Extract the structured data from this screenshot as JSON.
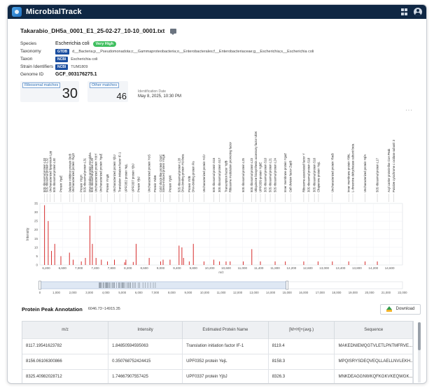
{
  "app": {
    "title": "MicrobialTrack"
  },
  "sample": {
    "filename": "Takarabio_DH5a_0001_E1_25-02-27_10-10_0001.txt",
    "species_label": "Species",
    "species": "Escherichia coli",
    "confidence": "Very High",
    "taxonomy_label": "Taxonomy",
    "taxonomy_tag": "GTDB",
    "taxonomy": "d__Bacteria;p__Pseudomonadota;c__Gammaproteobacteria;o__Enterobacterales;f__Enterobacteriaceae;g__Escherichia;s__Escherichia coli",
    "taxon_label": "Taxon",
    "taxon_tag": "NCBI",
    "taxon": "Escherichia coli",
    "strain_label": "Strain Identifiers",
    "strain_tag": "NCBI",
    "strain": "TUM1809",
    "genome_label": "Genome ID",
    "genome": "GCF_003176275.1"
  },
  "stats": {
    "ribosomal_label": "Ribosomal matches",
    "ribosomal_value": "30",
    "other_label": "Other matches",
    "other_value": "46",
    "id_date_label": "Identification Date",
    "id_date": "May 8, 2025, 10:30 PM"
  },
  "chart_menu": "···",
  "chart_data": {
    "type": "bar",
    "ylabel": "Intensity",
    "xlabel": "m/z",
    "xlim": [
      6046.73,
      14915.35
    ],
    "ylim": [
      0,
      35
    ],
    "yticks": [
      0,
      5,
      10,
      15,
      20,
      25,
      30,
      35
    ],
    "xticks": [
      6200,
      6600,
      7000,
      7400,
      7800,
      8200,
      8600,
      9000,
      9400,
      9800,
      10200,
      10600,
      11000,
      11400,
      11800,
      12200,
      12600,
      13000,
      13400,
      13800,
      14200,
      14600
    ],
    "overview_ticks": [
      0,
      1000,
      2000,
      3000,
      4000,
      5000,
      6000,
      7000,
      8000,
      9000,
      10000,
      11000,
      12000,
      13000,
      14000,
      15000,
      16000,
      17000,
      18000,
      19000,
      20000,
      21000,
      22000
    ],
    "overview_window": [
      0,
      15000
    ],
    "peaks": [
      {
        "mz": 6160,
        "y": 34
      },
      {
        "mz": 6250,
        "y": 25
      },
      {
        "mz": 6330,
        "y": 8
      },
      {
        "mz": 6410,
        "y": 12
      },
      {
        "mz": 6560,
        "y": 5
      },
      {
        "mz": 6770,
        "y": 7
      },
      {
        "mz": 6860,
        "y": 3
      },
      {
        "mz": 7060,
        "y": 2
      },
      {
        "mz": 7160,
        "y": 4
      },
      {
        "mz": 7270,
        "y": 28
      },
      {
        "mz": 7330,
        "y": 12
      },
      {
        "mz": 7420,
        "y": 4
      },
      {
        "mz": 7550,
        "y": 3
      },
      {
        "mz": 7700,
        "y": 2
      },
      {
        "mz": 7870,
        "y": 3
      },
      {
        "mz": 8120,
        "y": 1.5
      },
      {
        "mz": 8150,
        "y": 3
      },
      {
        "mz": 8330,
        "y": 1.7
      },
      {
        "mz": 8400,
        "y": 12
      },
      {
        "mz": 8720,
        "y": 4
      },
      {
        "mz": 9000,
        "y": 2
      },
      {
        "mz": 9060,
        "y": 3
      },
      {
        "mz": 9230,
        "y": 3
      },
      {
        "mz": 9450,
        "y": 11
      },
      {
        "mz": 9520,
        "y": 10
      },
      {
        "mz": 9560,
        "y": 4
      },
      {
        "mz": 9700,
        "y": 2
      },
      {
        "mz": 9800,
        "y": 12
      },
      {
        "mz": 10060,
        "y": 2
      },
      {
        "mz": 10300,
        "y": 3
      },
      {
        "mz": 10440,
        "y": 2
      },
      {
        "mz": 10600,
        "y": 2
      },
      {
        "mz": 10700,
        "y": 2
      },
      {
        "mz": 11020,
        "y": 2
      },
      {
        "mz": 11230,
        "y": 9
      },
      {
        "mz": 11440,
        "y": 2
      },
      {
        "mz": 11800,
        "y": 2
      },
      {
        "mz": 12050,
        "y": 2
      },
      {
        "mz": 12500,
        "y": 2
      },
      {
        "mz": 12850,
        "y": 2
      },
      {
        "mz": 13200,
        "y": 2
      },
      {
        "mz": 13600,
        "y": 2
      },
      {
        "mz": 14000,
        "y": 2
      },
      {
        "mz": 14300,
        "y": 2
      }
    ],
    "annotations": [
      {
        "mz": 6160,
        "text": "50S ribosomal protein L33"
      },
      {
        "mz": 6220,
        "text": "50S ribosomal protein L32"
      },
      {
        "mz": 6300,
        "text": "Uncharacterized lipoprotein Lpp"
      },
      {
        "mz": 6400,
        "text": "50S ribosomal protein L30"
      },
      {
        "mz": 6560,
        "text": "Protein YqaE"
      },
      {
        "mz": 6780,
        "text": "Deletion inhibitor protein DicB"
      },
      {
        "mz": 6860,
        "text": "Uncharacterized protein YkgO"
      },
      {
        "mz": 7060,
        "text": "Protein YdgH"
      },
      {
        "mz": 7140,
        "text": "50S ribosomal protein L31"
      },
      {
        "mz": 7270,
        "text": "DNA-binding protein HU-alpha"
      },
      {
        "mz": 7320,
        "text": "50S ribosomal protein L29"
      },
      {
        "mz": 7420,
        "text": "Uncharacterized protein YdcY"
      },
      {
        "mz": 7540,
        "text": "Uncharacterized protein YqaE"
      },
      {
        "mz": 7700,
        "text": "Protein YmgB"
      },
      {
        "mz": 7870,
        "text": "Uncharacterized protein YjbJ"
      },
      {
        "mz": 8000,
        "text": "Translation initiation factor IF-1"
      },
      {
        "mz": 8150,
        "text": "UPF0352 protein YejL"
      },
      {
        "mz": 8320,
        "text": "UPF0337 protein YjbJ"
      },
      {
        "mz": 8460,
        "text": "Protein YjbJ"
      },
      {
        "mz": 8720,
        "text": "Uncharacterized protein YciS"
      },
      {
        "mz": 8860,
        "text": "Protein YobB"
      },
      {
        "mz": 9000,
        "text": "Cold shock-like protein CspC"
      },
      {
        "mz": 9070,
        "text": "Stress-induced protein YmgE"
      },
      {
        "mz": 9230,
        "text": "Protein YgiW"
      },
      {
        "mz": 9450,
        "text": "50S ribosomal protein L28"
      },
      {
        "mz": 9540,
        "text": "DNA-binding protein HU-beta"
      },
      {
        "mz": 9700,
        "text": "Protein YnfE"
      },
      {
        "mz": 9800,
        "text": "DNA-binding protein Fis"
      },
      {
        "mz": 10060,
        "text": "Uncharacterized protein YcfJ"
      },
      {
        "mz": 10300,
        "text": "50S ribosomal protein S15"
      },
      {
        "mz": 10440,
        "text": "30S ribosomal protein S17"
      },
      {
        "mz": 10600,
        "text": "Transcription factor YqfB"
      },
      {
        "mz": 10700,
        "text": "Ribosome modulation promoting factor"
      },
      {
        "mz": 11020,
        "text": "50S ribosomal protein L25"
      },
      {
        "mz": 11230,
        "text": "50S ribosomal protein L23"
      },
      {
        "mz": 11330,
        "text": "Ubiquinone biosynthesis accessory factor UbiK"
      },
      {
        "mz": 11440,
        "text": "UPF0339 protein YgbE"
      },
      {
        "mz": 11560,
        "text": "30S ribosomal protein S10"
      },
      {
        "mz": 11680,
        "text": "50S ribosomal protein L21"
      },
      {
        "mz": 11800,
        "text": "50S ribosomal protein L24"
      },
      {
        "mz": 12050,
        "text": "Inner membrane protein YgaZ"
      },
      {
        "mz": 12180,
        "text": "Cell division factor ZapB"
      },
      {
        "mz": 12500,
        "text": "Ribosome-associated factor Y"
      },
      {
        "mz": 12620,
        "text": "30S ribosomal protein S18"
      },
      {
        "mz": 12760,
        "text": "30S ribosomal protein S16"
      },
      {
        "mz": 12860,
        "text": "Chaperone protein YajL"
      },
      {
        "mz": 13200,
        "text": "Uncharacterized protein YbeB"
      },
      {
        "mz": 13600,
        "text": "Inner membrane protein YbhL"
      },
      {
        "mz": 13700,
        "text": "L-threonine dehydratase subunit beta"
      },
      {
        "mz": 14000,
        "text": "Uncharacterized protein YqfA"
      },
      {
        "mz": 14300,
        "text": "50S ribosomal protein L17"
      },
      {
        "mz": 14580,
        "text": "Acyl carrier protein-like CoA Peak"
      },
      {
        "mz": 14700,
        "text": "Putative cytochrome c oxidase subunit 3"
      }
    ]
  },
  "annotation_section": {
    "title": "Protein Peak Annotation",
    "range": "6046.73~14915.35",
    "download_label": "Download"
  },
  "peak_table": {
    "columns": [
      "m/z",
      "Intensity",
      "Estimated Protein Name",
      "[M+H]+(avg.)",
      "Sequence"
    ],
    "rows": [
      [
        "8117.19541623782",
        "1.84850594595063",
        "Translation initiation factor IF-1",
        "8119.4",
        "MAKEDNIEMQGTVLETLPNTMFRVE..."
      ],
      [
        "8156.06106300866",
        "0.350768752424415",
        "UPF0352 protein YejL",
        "8158.3",
        "MPQISRYSDEQVEQLLAELLNVLEKH..."
      ],
      [
        "8325.40982028712",
        "1.74667907557425",
        "UPF0337 protein YjbJ",
        "8326.3",
        "MNKDEAGGNWKQFKGKVKEQWGK..."
      ]
    ]
  }
}
